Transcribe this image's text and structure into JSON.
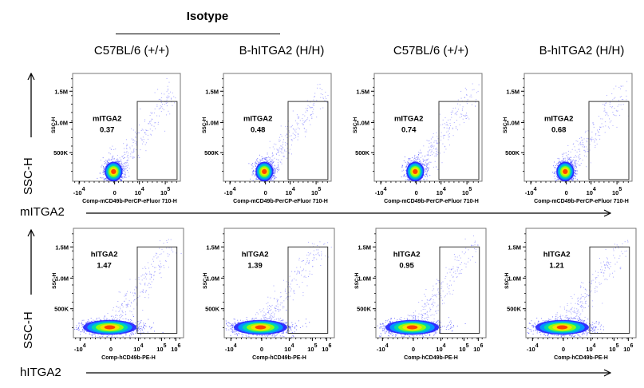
{
  "header": {
    "group_title": "Isotype",
    "columns": [
      "C57BL/6 (+/+)",
      "B-hITGA2 (H/H)",
      "C57BL/6 (+/+)",
      "B-hITGA2 (H/H)"
    ]
  },
  "rows": [
    {
      "y_axis_label": "SSC-H",
      "x_axis_label": "mITGA2"
    },
    {
      "y_axis_label": "SSC-H",
      "x_axis_label": "hITGA2"
    }
  ],
  "chart_data": [
    {
      "type": "scatter",
      "row": 0,
      "xlabel": "Comp-mCD49b-PerCP-eFluor 710-H",
      "ylabel": "SSC-H",
      "x_ticks": [
        "-10^4",
        "0",
        "10^4",
        "10^5"
      ],
      "y_ticks": [
        "500K",
        "1.0M",
        "1.5M"
      ],
      "gate_label": "mITGA2",
      "panels": [
        {
          "sample": "C57BL/6 (+/+)",
          "gate_percent": "0.37"
        },
        {
          "sample": "B-hITGA2 (H/H)",
          "gate_percent": "0.48"
        },
        {
          "sample": "C57BL/6 (+/+)",
          "gate_percent": "0.74"
        },
        {
          "sample": "B-hITGA2 (H/H)",
          "gate_percent": "0.68"
        }
      ]
    },
    {
      "type": "scatter",
      "row": 1,
      "xlabel": "Comp-hCD49b-PE-H",
      "ylabel": "SSC-H",
      "x_ticks": [
        "-10^4",
        "0",
        "10^4",
        "10^5",
        "10^6"
      ],
      "y_ticks": [
        "500K",
        "1.0M",
        "1.5M"
      ],
      "gate_label": "hITGA2",
      "panels": [
        {
          "sample": "C57BL/6 (+/+)",
          "gate_percent": "1.47"
        },
        {
          "sample": "B-hITGA2 (H/H)",
          "gate_percent": "1.39"
        },
        {
          "sample": "C57BL/6 (+/+)",
          "gate_percent": "0.95"
        },
        {
          "sample": "B-hITGA2 (H/H)",
          "gate_percent": "1.21"
        }
      ]
    }
  ],
  "colors": {
    "dots": "#3030ff",
    "frame": "#555555",
    "hot": "#ff0000"
  }
}
